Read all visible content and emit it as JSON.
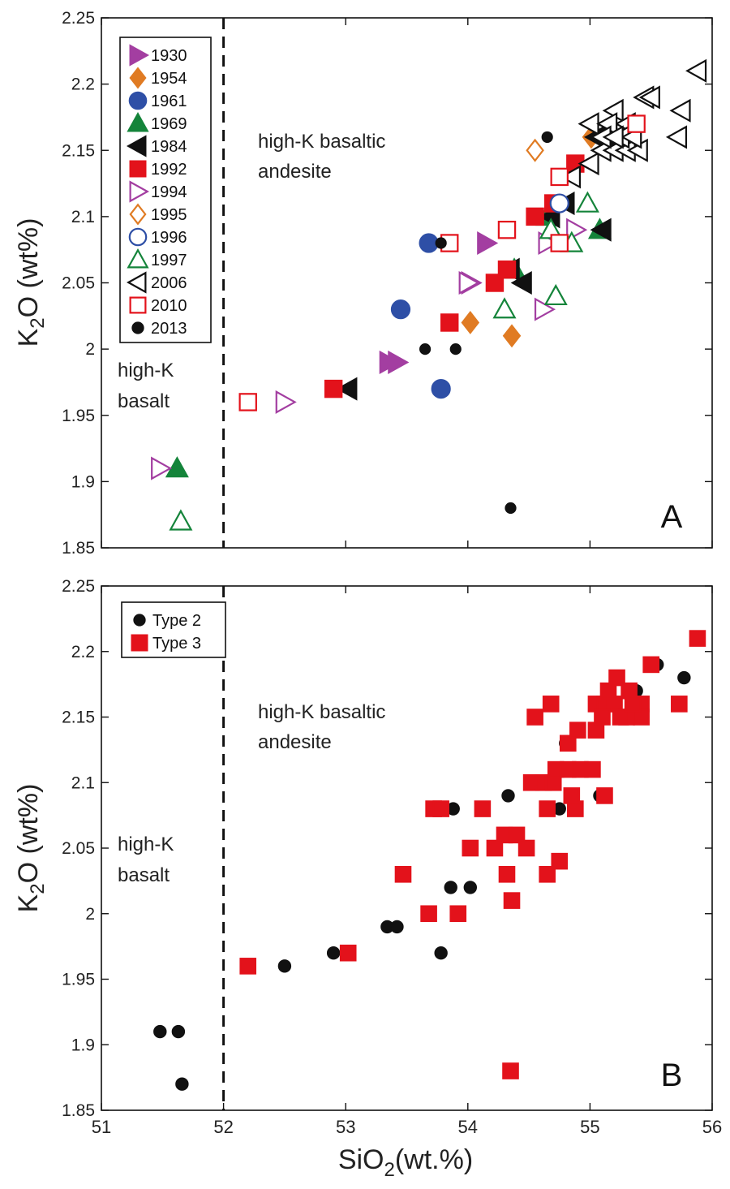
{
  "figure": {
    "x_axis_label": "SiO",
    "x_axis_label_sub": "2",
    "x_axis_label_suffix": "(wt.%)",
    "y_axis_label": "K",
    "y_axis_label_sub": "2",
    "y_axis_label_suffix": "O (wt%)",
    "x_ticks": [
      "51",
      "52",
      "53",
      "54",
      "55",
      "56"
    ],
    "y_ticks": [
      "1.85",
      "1.9",
      "1.95",
      "2",
      "2.05",
      "2.1",
      "2.15",
      "2.2",
      "2.25"
    ],
    "colors": {
      "purple": "#a33ea1",
      "orange": "#e07b23",
      "blue": "#2e4fa6",
      "green": "#14843a",
      "black": "#111111",
      "red": "#e3121b"
    }
  },
  "chart_data": [
    {
      "type": "scatter",
      "panel_label": "A",
      "xlim": [
        51,
        56
      ],
      "ylim": [
        1.85,
        2.25
      ],
      "divider_x": 52,
      "region_labels": [
        "high-K basaltic andesite",
        "high-K basalt"
      ],
      "legend_position": "top-left",
      "series": [
        {
          "name": "1930",
          "marker": "triangle-right",
          "filled": true,
          "color": "#a33ea1",
          "points": [
            [
              53.35,
              1.99
            ],
            [
              53.42,
              1.99
            ],
            [
              54.15,
              2.08
            ],
            [
              54.02,
              2.05
            ]
          ]
        },
        {
          "name": "1954",
          "marker": "diamond",
          "filled": true,
          "color": "#e07b23",
          "points": [
            [
              54.02,
              2.02
            ],
            [
              54.36,
              2.01
            ],
            [
              55.01,
              2.16
            ]
          ]
        },
        {
          "name": "1961",
          "marker": "circle",
          "filled": true,
          "color": "#2e4fa6",
          "points": [
            [
              53.68,
              2.08
            ],
            [
              53.45,
              2.03
            ],
            [
              53.78,
              1.97
            ]
          ]
        },
        {
          "name": "1969",
          "marker": "triangle-up",
          "filled": true,
          "color": "#14843a",
          "points": [
            [
              51.62,
              1.91
            ],
            [
              54.38,
              2.06
            ],
            [
              54.65,
              2.1
            ],
            [
              55.08,
              2.09
            ]
          ]
        },
        {
          "name": "1984",
          "marker": "triangle-left",
          "filled": true,
          "color": "#111111",
          "points": [
            [
              53.02,
              1.97
            ],
            [
              54.45,
              2.05
            ],
            [
              54.35,
              2.06
            ],
            [
              54.68,
              2.1
            ],
            [
              54.8,
              2.11
            ],
            [
              55.1,
              2.09
            ],
            [
              55.05,
              2.16
            ],
            [
              55.15,
              2.16
            ]
          ]
        },
        {
          "name": "1992",
          "marker": "square",
          "filled": true,
          "color": "#e3121b",
          "points": [
            [
              52.9,
              1.97
            ],
            [
              53.85,
              2.02
            ],
            [
              54.22,
              2.05
            ],
            [
              54.32,
              2.06
            ],
            [
              54.55,
              2.1
            ],
            [
              54.7,
              2.11
            ],
            [
              54.88,
              2.14
            ]
          ]
        },
        {
          "name": "1994",
          "marker": "triangle-right",
          "filled": false,
          "color": "#a33ea1",
          "points": [
            [
              51.48,
              1.91
            ],
            [
              52.5,
              1.96
            ],
            [
              54.0,
              2.05
            ],
            [
              54.62,
              2.03
            ],
            [
              54.65,
              2.08
            ],
            [
              54.88,
              2.09
            ]
          ]
        },
        {
          "name": "1995",
          "marker": "diamond",
          "filled": false,
          "color": "#e07b23",
          "points": [
            [
              54.55,
              2.15
            ]
          ]
        },
        {
          "name": "1996",
          "marker": "circle",
          "filled": false,
          "color": "#2e4fa6",
          "points": [
            [
              54.75,
              2.11
            ]
          ]
        },
        {
          "name": "1997",
          "marker": "triangle-up",
          "filled": false,
          "color": "#14843a",
          "points": [
            [
              51.65,
              1.87
            ],
            [
              54.3,
              2.03
            ],
            [
              54.72,
              2.04
            ],
            [
              54.85,
              2.08
            ],
            [
              54.98,
              2.11
            ],
            [
              54.68,
              2.09
            ]
          ]
        },
        {
          "name": "2006",
          "marker": "triangle-left",
          "filled": false,
          "color": "#111111",
          "points": [
            [
              54.85,
              2.13
            ],
            [
              55.0,
              2.14
            ],
            [
              55.1,
              2.15
            ],
            [
              55.2,
              2.15
            ],
            [
              55.3,
              2.15
            ],
            [
              55.4,
              2.15
            ],
            [
              55.0,
              2.17
            ],
            [
              55.2,
              2.18
            ],
            [
              55.3,
              2.17
            ],
            [
              55.45,
              2.19
            ],
            [
              55.5,
              2.19
            ],
            [
              55.75,
              2.18
            ],
            [
              55.72,
              2.16
            ],
            [
              55.88,
              2.21
            ],
            [
              55.15,
              2.17
            ],
            [
              55.25,
              2.16
            ],
            [
              55.35,
              2.16
            ],
            [
              55.1,
              2.16
            ],
            [
              55.2,
              2.16
            ]
          ]
        },
        {
          "name": "2010",
          "marker": "square",
          "filled": false,
          "color": "#e3121b",
          "points": [
            [
              52.2,
              1.96
            ],
            [
              53.85,
              2.08
            ],
            [
              54.32,
              2.09
            ],
            [
              54.75,
              2.13
            ],
            [
              54.75,
              2.08
            ],
            [
              55.38,
              2.17
            ]
          ]
        },
        {
          "name": "2013",
          "marker": "dot",
          "filled": true,
          "color": "#111111",
          "points": [
            [
              54.35,
              1.88
            ],
            [
              53.65,
              2.0
            ],
            [
              53.9,
              2.0
            ],
            [
              53.78,
              2.08
            ],
            [
              54.65,
              2.16
            ]
          ]
        }
      ]
    },
    {
      "type": "scatter",
      "panel_label": "B",
      "xlim": [
        51,
        56
      ],
      "ylim": [
        1.85,
        2.25
      ],
      "divider_x": 52,
      "region_labels": [
        "high-K basaltic andesite",
        "high-K basalt"
      ],
      "legend_position": "top-left",
      "series": [
        {
          "name": "Type 2",
          "marker": "dot",
          "filled": true,
          "color": "#111111",
          "points": [
            [
              51.48,
              1.91
            ],
            [
              51.63,
              1.91
            ],
            [
              51.66,
              1.87
            ],
            [
              52.5,
              1.96
            ],
            [
              52.9,
              1.97
            ],
            [
              53.34,
              1.99
            ],
            [
              53.42,
              1.99
            ],
            [
              53.78,
              1.97
            ],
            [
              53.86,
              2.02
            ],
            [
              54.02,
              2.02
            ],
            [
              53.88,
              2.08
            ],
            [
              54.03,
              2.05
            ],
            [
              54.33,
              2.09
            ],
            [
              54.37,
              2.06
            ],
            [
              54.65,
              2.1
            ],
            [
              54.75,
              2.08
            ],
            [
              54.8,
              2.13
            ],
            [
              55.08,
              2.09
            ],
            [
              55.38,
              2.17
            ],
            [
              55.55,
              2.19
            ],
            [
              55.77,
              2.18
            ]
          ]
        },
        {
          "name": "Type 3",
          "marker": "square",
          "filled": true,
          "color": "#e3121b",
          "points": [
            [
              52.2,
              1.96
            ],
            [
              53.02,
              1.97
            ],
            [
              53.68,
              2.0
            ],
            [
              53.92,
              2.0
            ],
            [
              53.47,
              2.03
            ],
            [
              53.72,
              2.08
            ],
            [
              53.78,
              2.08
            ],
            [
              54.02,
              2.05
            ],
            [
              54.12,
              2.08
            ],
            [
              54.22,
              2.05
            ],
            [
              54.3,
              2.06
            ],
            [
              54.4,
              2.06
            ],
            [
              54.48,
              2.05
            ],
            [
              54.32,
              2.03
            ],
            [
              54.36,
              2.01
            ],
            [
              54.35,
              1.88
            ],
            [
              54.52,
              2.1
            ],
            [
              54.62,
              2.1
            ],
            [
              54.65,
              2.08
            ],
            [
              54.7,
              2.1
            ],
            [
              54.72,
              2.11
            ],
            [
              54.82,
              2.11
            ],
            [
              54.92,
              2.11
            ],
            [
              55.02,
              2.11
            ],
            [
              55.12,
              2.09
            ],
            [
              54.88,
              2.08
            ],
            [
              54.85,
              2.09
            ],
            [
              54.65,
              2.03
            ],
            [
              54.75,
              2.04
            ],
            [
              54.55,
              2.15
            ],
            [
              54.68,
              2.16
            ],
            [
              54.82,
              2.13
            ],
            [
              54.9,
              2.14
            ],
            [
              55.05,
              2.14
            ],
            [
              55.05,
              2.16
            ],
            [
              55.12,
              2.16
            ],
            [
              55.15,
              2.17
            ],
            [
              55.2,
              2.16
            ],
            [
              55.22,
              2.18
            ],
            [
              55.3,
              2.15
            ],
            [
              55.32,
              2.17
            ],
            [
              55.42,
              2.16
            ],
            [
              55.42,
              2.15
            ],
            [
              55.5,
              2.19
            ],
            [
              55.73,
              2.16
            ],
            [
              55.88,
              2.21
            ],
            [
              55.1,
              2.15
            ],
            [
              55.25,
              2.15
            ],
            [
              55.35,
              2.16
            ]
          ]
        }
      ]
    }
  ]
}
